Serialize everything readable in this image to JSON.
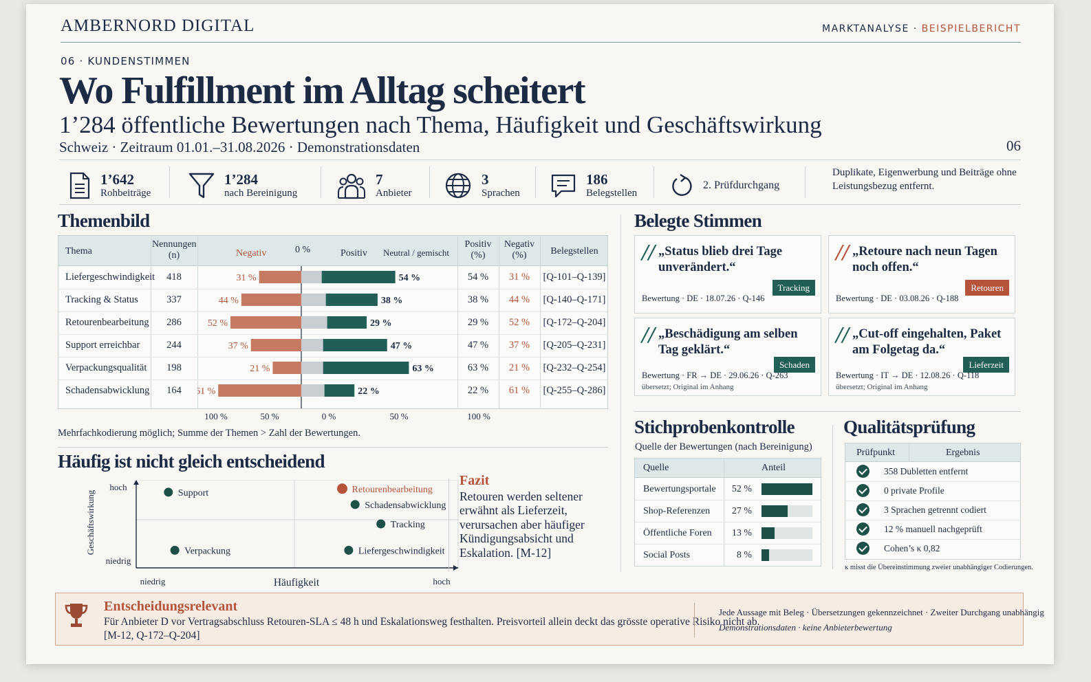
{
  "header": {
    "brand": "AMBERNORD DIGITAL",
    "label_left": "MARKTANALYSE",
    "label_sep": "·",
    "label_right": "BEISPIELBERICHT",
    "section": "06 · KUNDENSTIMMEN",
    "title": "Wo Fulfillment im Alltag scheitert",
    "subtitle": "1’284 öffentliche Bewertungen nach Thema, Häufigkeit und Geschäftswirkung",
    "meta": "Schweiz  ·  Zeitraum 01.01.–31.08.2026  ·  Demonstrationsdaten",
    "page": "06"
  },
  "stats": [
    {
      "icon": "document-icon",
      "value": "1’642",
      "label": "Rohbeiträge"
    },
    {
      "icon": "filter-icon",
      "value": "1’284",
      "label": "nach Bereinigung"
    },
    {
      "icon": "people-icon",
      "value": "7",
      "label": "Anbieter"
    },
    {
      "icon": "globe-icon",
      "value": "3",
      "label": "Sprachen"
    },
    {
      "icon": "speech-bubble-icon",
      "value": "186",
      "label": "Belegstellen"
    },
    {
      "icon": "refresh-icon",
      "value": "",
      "label": "2. Prüfdurchgang"
    }
  ],
  "strip_note": "Duplikate, Eigenwerbung und Beiträge ohne Leistungsbezug entfernt.",
  "themenbild": {
    "heading": "Themenbild",
    "headers": {
      "thema": "Thema",
      "nennungen": "Nennungen (n)",
      "negativ": "Negativ",
      "zero": "0 %",
      "positiv": "Positiv",
      "neutral": "Neutral / gemischt",
      "pos_pct": "Positiv (%)",
      "neg_pct": "Negativ (%)",
      "beleg": "Belegstellen"
    },
    "axis_ticks": [
      "100 %",
      "50 %",
      "0 %",
      "50 %",
      "100 %"
    ],
    "note": "Mehrfachkodierung möglich; Summe der Themen > Zahl der Bewertungen."
  },
  "chart_data": [
    {
      "type": "bar",
      "title": "Themenbild",
      "categories": [
        "Liefergeschwindigkeit",
        "Tracking & Status",
        "Retourenbearbeitung",
        "Support erreichbar",
        "Verpackungsqualität",
        "Schadensabwicklung"
      ],
      "nennungen": [
        418,
        337,
        286,
        244,
        198,
        164
      ],
      "series": [
        {
          "name": "Negativ",
          "values": [
            31,
            44,
            52,
            37,
            21,
            61
          ]
        },
        {
          "name": "Neutral / gemischt",
          "values": [
            15,
            18,
            19,
            16,
            16,
            17
          ]
        },
        {
          "name": "Positiv",
          "values": [
            54,
            38,
            29,
            47,
            63,
            22
          ]
        }
      ],
      "belegstellen": [
        "[Q-101–Q-139]",
        "[Q-140–Q-171]",
        "[Q-172–Q-204]",
        "[Q-205–Q-231]",
        "[Q-232–Q-254]",
        "[Q-255–Q-286]"
      ],
      "xlim": [
        -100,
        100
      ],
      "unit": "%"
    },
    {
      "type": "scatter",
      "title": "Häufig ist nicht gleich entscheidend",
      "xlabel": "Häufigkeit",
      "ylabel": "Geschäftswirkung",
      "x_ticks": [
        "niedrig",
        "hoch"
      ],
      "y_ticks": [
        "niedrig",
        "hoch"
      ],
      "points": [
        {
          "label": "Support",
          "x": 0.1,
          "y": 0.86,
          "highlight": false
        },
        {
          "label": "Retourenbearbeitung",
          "x": 0.64,
          "y": 0.9,
          "highlight": true
        },
        {
          "label": "Schadensabwicklung",
          "x": 0.68,
          "y": 0.72,
          "highlight": false
        },
        {
          "label": "Tracking",
          "x": 0.76,
          "y": 0.5,
          "highlight": false
        },
        {
          "label": "Verpackung",
          "x": 0.12,
          "y": 0.2,
          "highlight": false
        },
        {
          "label": "Liefergeschwindigkeit",
          "x": 0.66,
          "y": 0.2,
          "highlight": false
        }
      ]
    },
    {
      "type": "bar",
      "title": "Stichprobenkontrolle",
      "categories": [
        "Bewertungsportale",
        "Shop-Referenzen",
        "Öffentliche Foren",
        "Social Posts"
      ],
      "values": [
        52,
        27,
        13,
        8
      ],
      "unit": "%"
    }
  ],
  "matrix": {
    "heading": "Häufig ist nicht gleich entscheidend",
    "fazit_title": "Fazit",
    "fazit_text": "Retouren werden seltener erwähnt als Lieferzeit, verursachen aber häufiger Kündigungsabsicht und Eskalation. [M-12]"
  },
  "quotes": {
    "heading": "Belegte Stimmen",
    "items": [
      {
        "text": "„Status blieb drei Tage unverändert.“",
        "tag": "Tracking",
        "meta": "Bewertung · DE · 18.07.26 · Q-146",
        "sub": "",
        "accent": "#215f56"
      },
      {
        "text": "„Retoure nach neun Tagen noch offen.“",
        "tag": "Retouren",
        "meta": "Bewertung · DE · 03.08.26 · Q-188",
        "sub": "",
        "accent": "#b5533b"
      },
      {
        "text": "„Beschädigung am selben Tag geklärt.“",
        "tag": "Schaden",
        "meta": "Bewertung · FR → DE · 29.06.26 · Q-263",
        "sub": "übersetzt; Original im Anhang",
        "accent": "#215f56"
      },
      {
        "text": "„Cut-off eingehalten, Paket am Folgetag da.“",
        "tag": "Lieferzeit",
        "meta": "Bewertung · IT → DE · 12.08.26 · Q-118",
        "sub": "übersetzt; Original im Anhang",
        "accent": "#215f56"
      }
    ]
  },
  "stichprobe": {
    "heading": "Stichprobenkontrolle",
    "subheading": "Quelle der Bewertungen (nach Bereinigung)",
    "col_source": "Quelle",
    "col_share": "Anteil",
    "labels": [
      "52 %",
      "27 %",
      "13 %",
      "8 %"
    ]
  },
  "qualitaet": {
    "heading": "Qualitätsprüfung",
    "col_point": "Prüfpunkt",
    "col_result": "Ergebnis",
    "items": [
      "358 Dubletten entfernt",
      "0 private Profile",
      "3 Sprachen getrennt codiert",
      "12 % manuell nachgeprüft",
      "Cohen’s κ 0,82"
    ],
    "note": "κ misst die Übereinstimmung zweier unabhängiger Codierungen."
  },
  "banner": {
    "title": "Entscheidungsrelevant",
    "text": "Für Anbieter D vor Vertragsabschluss Retouren-SLA ≤ 48 h und Eskalationsweg festhalten. Preisvorteil allein deckt das grösste operative Risiko nicht ab.",
    "ref": "[M-12, Q-172–Q-204]",
    "right_line1": "Jede Aussage mit Beleg  ·  Übersetzungen gekennzeichnet  ·  Zweiter Durchgang unabhängig",
    "right_line2": "Demonstrationsdaten  ·  keine Anbieterbewertung"
  },
  "colors": {
    "navy": "#1d2a44",
    "green": "#215f56",
    "red": "#b5533b",
    "neutral": "#c8cdd1"
  }
}
